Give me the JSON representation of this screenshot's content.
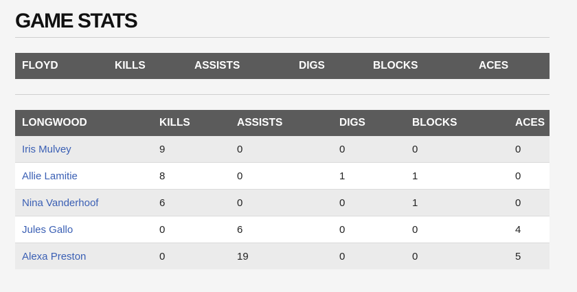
{
  "page_title": "GAME STATS",
  "floyd": {
    "headers": [
      "FLOYD",
      "KILLS",
      "ASSISTS",
      "DIGS",
      "BLOCKS",
      "ACES"
    ]
  },
  "longwood": {
    "headers": [
      "LONGWOOD",
      "KILLS",
      "ASSISTS",
      "DIGS",
      "BLOCKS",
      "ACES"
    ],
    "rows": [
      {
        "name": "Iris Mulvey",
        "kills": "9",
        "assists": "0",
        "digs": "0",
        "blocks": "0",
        "aces": "0"
      },
      {
        "name": "Allie Lamitie",
        "kills": "8",
        "assists": "0",
        "digs": "1",
        "blocks": "1",
        "aces": "0"
      },
      {
        "name": "Nina Vanderhoof",
        "kills": "6",
        "assists": "0",
        "digs": "0",
        "blocks": "1",
        "aces": "0"
      },
      {
        "name": "Jules Gallo",
        "kills": "0",
        "assists": "6",
        "digs": "0",
        "blocks": "0",
        "aces": "4"
      },
      {
        "name": "Alexa Preston",
        "kills": "0",
        "assists": "19",
        "digs": "0",
        "blocks": "0",
        "aces": "5"
      }
    ]
  },
  "colors": {
    "header_bg": "#5b5b5b",
    "link": "#3a5fb4",
    "row_alt": "#ebebeb"
  }
}
